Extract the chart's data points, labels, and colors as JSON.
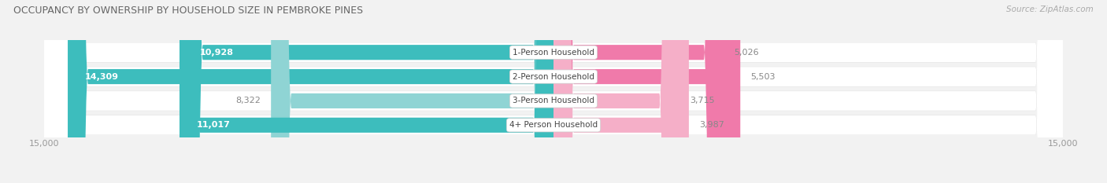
{
  "title": "OCCUPANCY BY OWNERSHIP BY HOUSEHOLD SIZE IN PEMBROKE PINES",
  "source": "Source: ZipAtlas.com",
  "categories": [
    "1-Person Household",
    "2-Person Household",
    "3-Person Household",
    "4+ Person Household"
  ],
  "owner_values": [
    10928,
    14309,
    8322,
    11017
  ],
  "renter_values": [
    5026,
    5503,
    3715,
    3987
  ],
  "max_value": 15000,
  "owner_color_dark": "#3dbdbd",
  "owner_color_light": "#8fd4d4",
  "renter_color_dark": "#f07aaa",
  "renter_color_light": "#f5afc8",
  "bg_color": "#f2f2f2",
  "row_bg_color": "#ffffff",
  "row_shadow_color": "#dddddd",
  "title_color": "#666666",
  "label_white": "#ffffff",
  "label_dark": "#888888",
  "source_color": "#aaaaaa",
  "owner_threshold": 9000,
  "renter_threshold": 5000
}
